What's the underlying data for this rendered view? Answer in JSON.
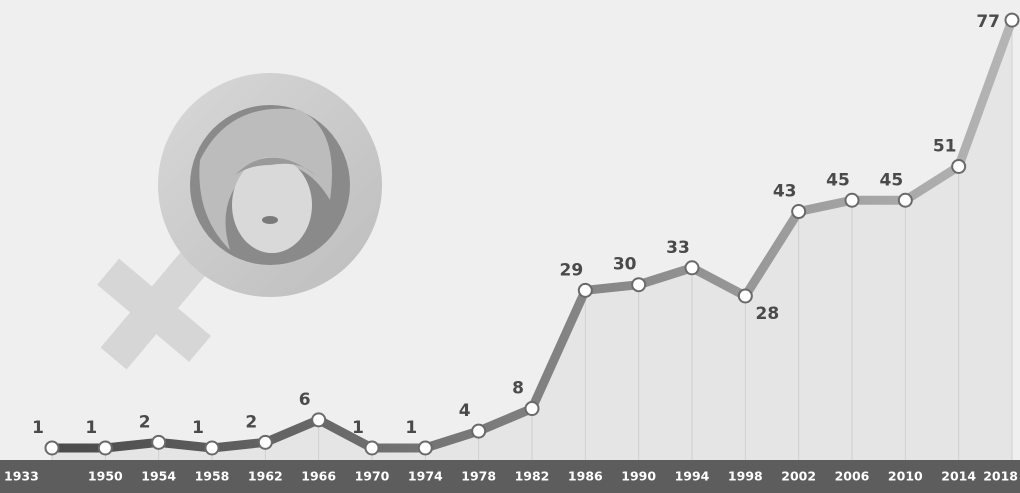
{
  "chart_data": {
    "type": "line",
    "categories": [
      "1933",
      "1950",
      "1954",
      "1958",
      "1962",
      "1966",
      "1970",
      "1974",
      "1978",
      "1982",
      "1986",
      "1990",
      "1994",
      "1998",
      "2002",
      "2006",
      "2010",
      "2014",
      "2018"
    ],
    "values": [
      1,
      1,
      2,
      1,
      2,
      6,
      1,
      1,
      4,
      8,
      29,
      30,
      33,
      28,
      43,
      45,
      45,
      51,
      77
    ],
    "color": "#4a4a4a",
    "ylim": [
      0,
      80
    ]
  }
}
